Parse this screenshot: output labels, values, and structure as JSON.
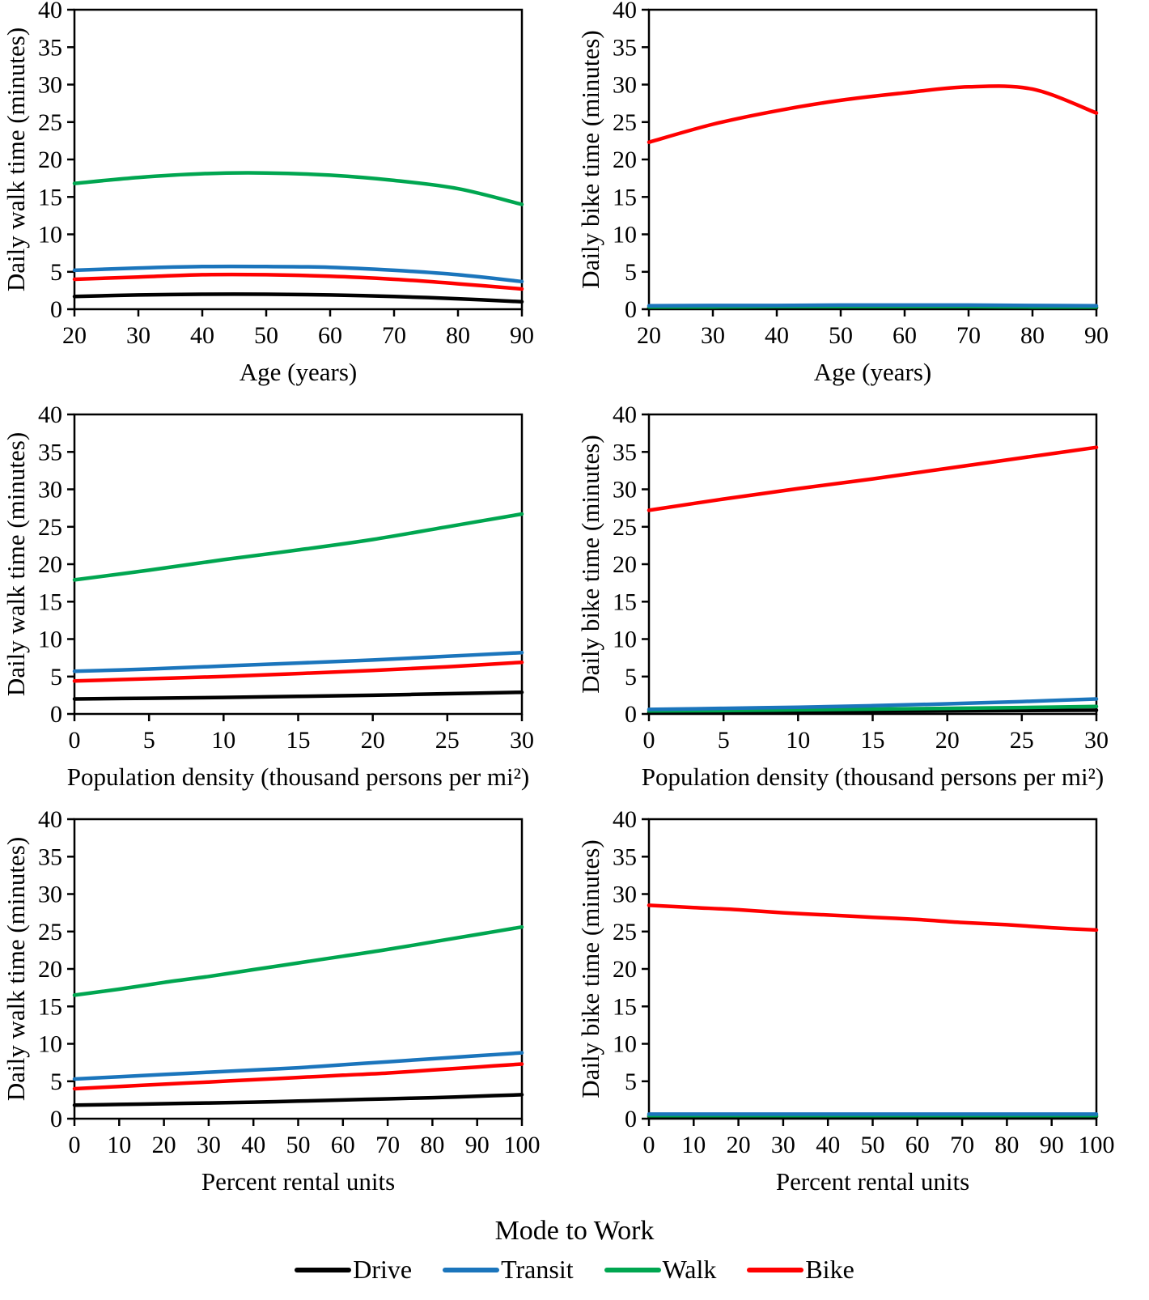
{
  "legend": {
    "title": "Mode to Work",
    "entries": [
      {
        "label": "Drive",
        "color": "#000000"
      },
      {
        "label": "Transit",
        "color": "#1B75BC"
      },
      {
        "label": "Walk",
        "color": "#00A650"
      },
      {
        "label": "Bike",
        "color": "#FF0000"
      }
    ]
  },
  "chart_data": [
    {
      "type": "line",
      "title": "",
      "ylabel": "Daily walk time (minutes)",
      "xlabel": "Age (years)",
      "xlim": [
        20,
        90
      ],
      "ylim": [
        0,
        40
      ],
      "xticks": [
        20,
        30,
        40,
        50,
        60,
        70,
        80,
        90
      ],
      "yticks": [
        0,
        5,
        10,
        15,
        20,
        25,
        30,
        35,
        40
      ],
      "x": [
        20,
        30,
        40,
        50,
        60,
        70,
        80,
        90
      ],
      "series": [
        {
          "name": "Drive",
          "values": [
            1.7,
            1.9,
            2.0,
            2.0,
            1.9,
            1.7,
            1.4,
            1.0
          ]
        },
        {
          "name": "Walk",
          "values": [
            16.8,
            17.6,
            18.1,
            18.2,
            17.9,
            17.2,
            16.1,
            14.0
          ]
        },
        {
          "name": "Bike",
          "values": [
            4.0,
            4.3,
            4.6,
            4.6,
            4.4,
            4.0,
            3.4,
            2.7
          ]
        },
        {
          "name": "Transit",
          "values": [
            5.2,
            5.5,
            5.7,
            5.7,
            5.6,
            5.2,
            4.6,
            3.7
          ]
        }
      ]
    },
    {
      "type": "line",
      "title": "",
      "ylabel": "Daily bike time (minutes)",
      "xlabel": "Age (years)",
      "xlim": [
        20,
        90
      ],
      "ylim": [
        0,
        40
      ],
      "xticks": [
        20,
        30,
        40,
        50,
        60,
        70,
        80,
        90
      ],
      "yticks": [
        0,
        5,
        10,
        15,
        20,
        25,
        30,
        35,
        40
      ],
      "x": [
        20,
        30,
        40,
        50,
        60,
        70,
        80,
        90
      ],
      "series": [
        {
          "name": "Drive",
          "values": [
            0.2,
            0.2,
            0.2,
            0.2,
            0.2,
            0.2,
            0.2,
            0.2
          ]
        },
        {
          "name": "Walk",
          "values": [
            0.3,
            0.3,
            0.35,
            0.35,
            0.35,
            0.35,
            0.3,
            0.3
          ]
        },
        {
          "name": "Transit",
          "values": [
            0.45,
            0.5,
            0.5,
            0.55,
            0.55,
            0.55,
            0.5,
            0.45
          ]
        },
        {
          "name": "Bike",
          "values": [
            22.3,
            24.7,
            26.5,
            27.9,
            28.9,
            29.7,
            29.4,
            26.2
          ]
        }
      ]
    },
    {
      "type": "line",
      "title": "",
      "ylabel": "Daily walk time (minutes)",
      "xlabel": "Population density (thousand persons per mi²)",
      "xlim": [
        0,
        30
      ],
      "ylim": [
        0,
        40
      ],
      "xticks": [
        0,
        5,
        10,
        15,
        20,
        25,
        30
      ],
      "yticks": [
        0,
        5,
        10,
        15,
        20,
        25,
        30,
        35,
        40
      ],
      "x": [
        0,
        5,
        10,
        15,
        20,
        25,
        30
      ],
      "series": [
        {
          "name": "Drive",
          "values": [
            2.0,
            2.1,
            2.2,
            2.35,
            2.5,
            2.7,
            2.9
          ]
        },
        {
          "name": "Walk",
          "values": [
            17.9,
            19.2,
            20.6,
            21.9,
            23.3,
            25.0,
            26.7
          ]
        },
        {
          "name": "Bike",
          "values": [
            4.4,
            4.7,
            5.0,
            5.4,
            5.8,
            6.3,
            6.9
          ]
        },
        {
          "name": "Transit",
          "values": [
            5.7,
            6.0,
            6.4,
            6.8,
            7.2,
            7.7,
            8.2
          ]
        }
      ]
    },
    {
      "type": "line",
      "title": "",
      "ylabel": "Daily bike time (minutes)",
      "xlabel": "Population density (thousand persons per mi²)",
      "xlim": [
        0,
        30
      ],
      "ylim": [
        0,
        40
      ],
      "xticks": [
        0,
        5,
        10,
        15,
        20,
        25,
        30
      ],
      "yticks": [
        0,
        5,
        10,
        15,
        20,
        25,
        30,
        35,
        40
      ],
      "x": [
        0,
        5,
        10,
        15,
        20,
        25,
        30
      ],
      "series": [
        {
          "name": "Drive",
          "values": [
            0.2,
            0.25,
            0.3,
            0.35,
            0.4,
            0.45,
            0.5
          ]
        },
        {
          "name": "Walk",
          "values": [
            0.4,
            0.45,
            0.55,
            0.65,
            0.75,
            0.85,
            1.0
          ]
        },
        {
          "name": "Transit",
          "values": [
            0.6,
            0.75,
            0.9,
            1.1,
            1.35,
            1.65,
            2.0
          ]
        },
        {
          "name": "Bike",
          "values": [
            27.2,
            28.7,
            30.1,
            31.4,
            32.8,
            34.2,
            35.6
          ]
        }
      ]
    },
    {
      "type": "line",
      "title": "",
      "ylabel": "Daily walk time (minutes)",
      "xlabel": "Percent rental units",
      "xlim": [
        0,
        100
      ],
      "ylim": [
        0,
        40
      ],
      "xticks": [
        0,
        10,
        20,
        30,
        40,
        50,
        60,
        70,
        80,
        90,
        100
      ],
      "yticks": [
        0,
        5,
        10,
        15,
        20,
        25,
        30,
        35,
        40
      ],
      "x": [
        0,
        10,
        20,
        30,
        40,
        50,
        60,
        70,
        80,
        90,
        100
      ],
      "series": [
        {
          "name": "Drive",
          "values": [
            1.8,
            1.9,
            2.0,
            2.1,
            2.2,
            2.35,
            2.5,
            2.65,
            2.8,
            3.0,
            3.2
          ]
        },
        {
          "name": "Walk",
          "values": [
            16.5,
            17.3,
            18.2,
            19.0,
            19.9,
            20.8,
            21.7,
            22.6,
            23.6,
            24.6,
            25.6
          ]
        },
        {
          "name": "Bike",
          "values": [
            4.0,
            4.3,
            4.6,
            4.9,
            5.2,
            5.5,
            5.8,
            6.1,
            6.5,
            6.9,
            7.3
          ]
        },
        {
          "name": "Transit",
          "values": [
            5.3,
            5.6,
            5.9,
            6.2,
            6.5,
            6.8,
            7.2,
            7.6,
            8.0,
            8.4,
            8.8
          ]
        }
      ]
    },
    {
      "type": "line",
      "title": "",
      "ylabel": "Daily bike time (minutes)",
      "xlabel": "Percent rental units",
      "xlim": [
        0,
        100
      ],
      "ylim": [
        0,
        40
      ],
      "xticks": [
        0,
        10,
        20,
        30,
        40,
        50,
        60,
        70,
        80,
        90,
        100
      ],
      "yticks": [
        0,
        5,
        10,
        15,
        20,
        25,
        30,
        35,
        40
      ],
      "x": [
        0,
        10,
        20,
        30,
        40,
        50,
        60,
        70,
        80,
        90,
        100
      ],
      "series": [
        {
          "name": "Drive",
          "values": [
            0.3,
            0.3,
            0.3,
            0.3,
            0.3,
            0.3,
            0.3,
            0.3,
            0.3,
            0.3,
            0.3
          ]
        },
        {
          "name": "Walk",
          "values": [
            0.4,
            0.4,
            0.4,
            0.4,
            0.4,
            0.4,
            0.4,
            0.4,
            0.4,
            0.4,
            0.4
          ]
        },
        {
          "name": "Transit",
          "values": [
            0.6,
            0.6,
            0.6,
            0.6,
            0.6,
            0.6,
            0.6,
            0.6,
            0.6,
            0.6,
            0.6
          ]
        },
        {
          "name": "Bike",
          "values": [
            28.5,
            28.2,
            27.9,
            27.5,
            27.2,
            26.9,
            26.6,
            26.2,
            25.9,
            25.5,
            25.2
          ]
        }
      ]
    }
  ]
}
